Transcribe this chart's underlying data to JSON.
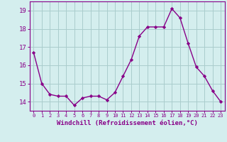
{
  "x": [
    0,
    1,
    2,
    3,
    4,
    5,
    6,
    7,
    8,
    9,
    10,
    11,
    12,
    13,
    14,
    15,
    16,
    17,
    18,
    19,
    20,
    21,
    22,
    23
  ],
  "y": [
    16.7,
    15.0,
    14.4,
    14.3,
    14.3,
    13.8,
    14.2,
    14.3,
    14.3,
    14.1,
    14.5,
    15.4,
    16.3,
    17.6,
    18.1,
    18.1,
    18.1,
    19.1,
    18.6,
    17.2,
    15.9,
    15.4,
    14.6,
    14.0
  ],
  "line_color": "#880088",
  "marker": "D",
  "marker_size": 2.2,
  "linewidth": 1.0,
  "xlabel": "Windchill (Refroidissement éolien,°C)",
  "xlabel_fontsize": 6.5,
  "ylim": [
    13.5,
    19.5
  ],
  "yticks": [
    14,
    15,
    16,
    17,
    18,
    19
  ],
  "xticks": [
    0,
    1,
    2,
    3,
    4,
    5,
    6,
    7,
    8,
    9,
    10,
    11,
    12,
    13,
    14,
    15,
    16,
    17,
    18,
    19,
    20,
    21,
    22,
    23
  ],
  "xtick_fontsize": 5.0,
  "ytick_fontsize": 6.5,
  "bg_color": "#d4eeee",
  "grid_color": "#aacccc",
  "axis_color": "#880088",
  "tick_color": "#880088"
}
